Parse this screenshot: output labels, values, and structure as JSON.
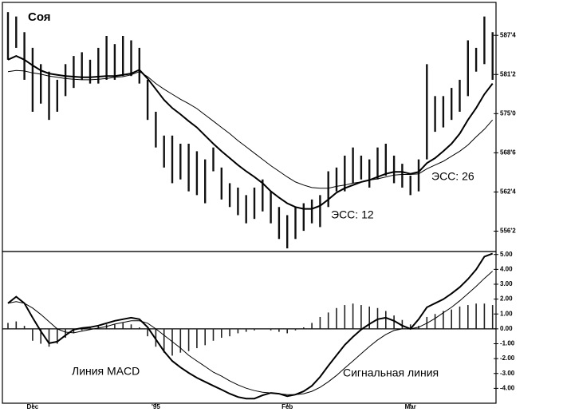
{
  "chart_data": [
    {
      "type": "ohlc",
      "title": "Соя",
      "high": [
        591.2,
        590.5,
        588.0,
        585.5,
        582.9,
        581.7,
        580.4,
        582.9,
        584.2,
        584.8,
        583.6,
        585.5,
        587.4,
        586.1,
        587.4,
        586.7,
        585.5,
        580.4,
        575.3,
        571.5,
        571.5,
        570.2,
        570.2,
        569.0,
        567.7,
        569.6,
        566.4,
        563.9,
        563.2,
        562.0,
        563.2,
        564.5,
        562.6,
        560.1,
        558.8,
        560.1,
        560.7,
        561.3,
        562.0,
        565.8,
        566.4,
        568.3,
        569.6,
        568.3,
        567.7,
        569.6,
        570.2,
        568.3,
        567.0,
        565.1,
        567.7,
        582.9,
        577.8,
        577.8,
        579.1,
        580.4,
        586.7,
        585.5,
        590.5,
        588.0
      ],
      "low": [
        583.6,
        585.5,
        580.4,
        575.3,
        576.6,
        574.0,
        575.3,
        577.8,
        579.1,
        580.4,
        579.8,
        579.8,
        580.4,
        580.4,
        581.0,
        581.0,
        579.8,
        574.0,
        569.6,
        566.4,
        563.9,
        564.5,
        562.6,
        562.0,
        560.7,
        565.8,
        561.3,
        560.1,
        558.8,
        557.5,
        558.2,
        559.4,
        557.5,
        555.0,
        553.5,
        555.0,
        556.3,
        557.5,
        556.9,
        560.1,
        562.6,
        562.6,
        563.9,
        564.5,
        563.2,
        564.5,
        565.1,
        563.9,
        563.2,
        562.0,
        562.6,
        567.7,
        572.1,
        572.8,
        574.0,
        575.3,
        577.8,
        581.7,
        582.9,
        580.4
      ],
      "bar_color": "#111111",
      "series": [
        {
          "name": "ЭСС: 12",
          "color": "#000000",
          "values": [
            583.6,
            584.2,
            583.6,
            582.7,
            581.9,
            581.4,
            581.2,
            581.0,
            580.9,
            580.8,
            580.8,
            580.9,
            581.0,
            581.0,
            581.2,
            581.4,
            582.0,
            580.6,
            578.9,
            577.2,
            575.9,
            574.9,
            573.8,
            572.8,
            571.5,
            570.2,
            569.0,
            567.9,
            566.8,
            565.8,
            564.9,
            563.9,
            562.6,
            561.6,
            560.7,
            560.1,
            559.8,
            559.8,
            560.3,
            561.3,
            562.4,
            563.1,
            563.6,
            564.1,
            564.4,
            564.9,
            565.4,
            565.7,
            565.7,
            565.4,
            565.7,
            567.1,
            567.9,
            569.0,
            570.2,
            571.8,
            574.0,
            575.9,
            578.1,
            579.8
          ]
        },
        {
          "name": "ЭСС: 26",
          "color": "#000000",
          "values": [
            581.7,
            581.9,
            581.8,
            581.5,
            581.3,
            581.0,
            580.8,
            580.6,
            580.5,
            580.4,
            580.4,
            580.5,
            580.6,
            580.8,
            580.9,
            581.2,
            581.7,
            580.9,
            579.8,
            578.9,
            578.1,
            577.3,
            576.6,
            575.8,
            574.8,
            573.8,
            572.8,
            571.8,
            570.7,
            569.7,
            568.7,
            567.7,
            566.7,
            565.8,
            564.9,
            564.1,
            563.6,
            563.2,
            563.1,
            563.1,
            563.4,
            563.6,
            563.9,
            564.1,
            564.4,
            564.6,
            564.9,
            565.2,
            565.3,
            565.3,
            565.4,
            566.2,
            566.8,
            567.4,
            568.2,
            569.0,
            570.0,
            571.3,
            572.5,
            574.0
          ]
        }
      ],
      "ylim": [
        553,
        592.75
      ],
      "yticks": [
        {
          "value": 587.5,
          "label": "587'4"
        },
        {
          "value": 581.25,
          "label": "581'2"
        },
        {
          "value": 575,
          "label": "575'0"
        },
        {
          "value": 568.75,
          "label": "568'6"
        },
        {
          "value": 562.5,
          "label": "562'4"
        },
        {
          "value": 556.25,
          "label": "556'2"
        }
      ]
    },
    {
      "type": "macd",
      "categories": [
        null,
        null,
        null,
        "Dec",
        null,
        null,
        null,
        null,
        null,
        null,
        null,
        null,
        null,
        null,
        null,
        null,
        null,
        null,
        "'95",
        null,
        null,
        null,
        null,
        null,
        null,
        null,
        null,
        null,
        null,
        null,
        null,
        null,
        null,
        null,
        "Feb",
        null,
        null,
        null,
        null,
        null,
        null,
        null,
        null,
        null,
        null,
        null,
        null,
        null,
        null,
        "Mar",
        null,
        null,
        null,
        null,
        null,
        null,
        null,
        null,
        null,
        null
      ],
      "histogram": [
        0.4,
        0.5,
        0.2,
        -0.8,
        -1.0,
        -1.2,
        -1.0,
        -0.6,
        -0.3,
        -0.1,
        0.1,
        0.2,
        0.3,
        0.3,
        0.4,
        0.3,
        0.1,
        -0.5,
        -1.2,
        -1.6,
        -1.8,
        -1.6,
        -1.5,
        -1.3,
        -1.1,
        -0.8,
        -0.6,
        -0.5,
        -0.3,
        -0.2,
        -0.1,
        0,
        -0.1,
        -0.2,
        -0.3,
        -0.1,
        0.1,
        0.4,
        0.8,
        1.1,
        1.4,
        1.6,
        1.7,
        1.6,
        1.5,
        1.4,
        1.2,
        0.9,
        0.6,
        0.3,
        0.2,
        0.8,
        1.0,
        1.2,
        1.3,
        1.5,
        1.6,
        1.7,
        1.7,
        1.6
      ],
      "histogram_color": "#222222",
      "series": [
        {
          "name": "Линия MACD",
          "color": "#000000",
          "values": [
            1.72,
            2.16,
            1.72,
            0.75,
            -0.16,
            -0.97,
            -0.86,
            -0.43,
            -0.05,
            0.05,
            0.11,
            0.22,
            0.38,
            0.54,
            0.65,
            0.75,
            0.65,
            0.11,
            -0.7,
            -1.51,
            -2.16,
            -2.59,
            -2.96,
            -3.29,
            -3.56,
            -3.83,
            -4.09,
            -4.36,
            -4.58,
            -4.69,
            -4.69,
            -4.47,
            -4.31,
            -4.36,
            -4.53,
            -4.42,
            -4.2,
            -3.83,
            -3.23,
            -2.48,
            -1.78,
            -1.08,
            -0.54,
            -0.05,
            0.32,
            0.65,
            0.75,
            0.54,
            0.22,
            0,
            0.65,
            1.45,
            1.72,
            1.99,
            2.37,
            2.8,
            3.34,
            3.99,
            4.85,
            5.06
          ]
        },
        {
          "name": "Сигнальная линия",
          "color": "#000000",
          "values": [
            1.72,
            1.83,
            1.72,
            1.4,
            0.97,
            0.48,
            0,
            -0.22,
            -0.27,
            -0.16,
            -0.05,
            0.05,
            0.16,
            0.32,
            0.43,
            0.54,
            0.54,
            0.38,
            0,
            -0.43,
            -0.86,
            -1.29,
            -1.78,
            -2.16,
            -2.53,
            -2.91,
            -3.18,
            -3.5,
            -3.77,
            -3.99,
            -4.15,
            -4.26,
            -4.31,
            -4.36,
            -4.42,
            -4.42,
            -4.36,
            -4.2,
            -3.93,
            -3.56,
            -3.13,
            -2.64,
            -2.16,
            -1.67,
            -1.19,
            -0.75,
            -0.38,
            -0.11,
            0,
            0,
            0.11,
            0.38,
            0.7,
            1.08,
            1.45,
            1.89,
            2.37,
            2.86,
            3.39,
            3.88
          ]
        }
      ],
      "ylim": [
        -5,
        5.2
      ],
      "yticks": [
        {
          "value": 5,
          "label": "5.00"
        },
        {
          "value": 4,
          "label": "4.00"
        },
        {
          "value": 3,
          "label": "3.00"
        },
        {
          "value": 2,
          "label": "2.00"
        },
        {
          "value": 1,
          "label": "1.00"
        },
        {
          "value": 0,
          "label": "0.00"
        },
        {
          "value": -1,
          "label": "-1.00"
        },
        {
          "value": -2,
          "label": "-2.00"
        },
        {
          "value": -3,
          "label": "-3.00"
        },
        {
          "value": -4,
          "label": "-4.00"
        }
      ]
    }
  ]
}
